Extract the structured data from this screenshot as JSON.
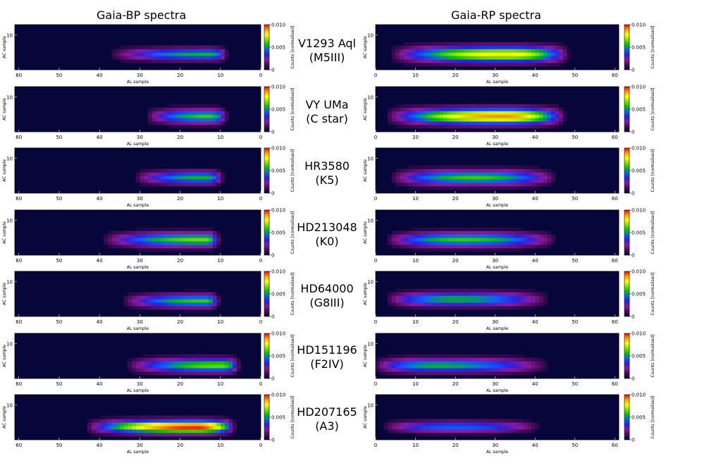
{
  "column_titles": {
    "left": "Gaia-BP spectra",
    "right": "Gaia-RP spectra"
  },
  "rows": [
    {
      "name": "V1293 Aql",
      "type": "(M5III)"
    },
    {
      "name": "VY UMa",
      "type": "(C star)"
    },
    {
      "name": "HR3580",
      "type": "(K5)"
    },
    {
      "name": "HD213048",
      "type": "(K0)"
    },
    {
      "name": "HD64000",
      "type": "(G8III)"
    },
    {
      "name": "HD151196",
      "type": "(F2IV)"
    },
    {
      "name": "HD207165",
      "type": "(A3)"
    }
  ],
  "colors": {
    "background": "#06063a",
    "colormap": [
      "#06063a",
      "#4a0a5a",
      "#8a1aa0",
      "#2a20e0",
      "#0a60ff",
      "#00c000",
      "#80e000",
      "#ffff00",
      "#ffa000",
      "#ff0000"
    ]
  },
  "chart_data": [
    {
      "type": "heatmap",
      "instrument": "BP",
      "xlabel": "AL sample",
      "ylabel": "AC sample",
      "x_reversed": true,
      "xlim": [
        0,
        61
      ],
      "xticks": [
        60,
        50,
        40,
        30,
        20,
        10,
        0
      ],
      "yticks": [
        10
      ],
      "colorbar": {
        "label": "Counts [normalised]",
        "ticks": [
          "0.010",
          "0.005",
          "0"
        ],
        "range": [
          0,
          0.01
        ]
      },
      "panels": [
        {
          "star": "V1293 Aql",
          "peak_al": 13,
          "peak": 0.0055,
          "x_start": 36,
          "x_end": 10,
          "ac_center": 4.5,
          "ac_width": 1.2
        },
        {
          "star": "VY UMa",
          "peak_al": 13,
          "peak": 0.006,
          "x_start": 27,
          "x_end": 10,
          "ac_center": 4.5,
          "ac_width": 1.4
        },
        {
          "star": "HR3580",
          "peak_al": 14,
          "peak": 0.0055,
          "x_start": 30,
          "x_end": 11,
          "ac_center": 4.5,
          "ac_width": 1.3
        },
        {
          "star": "HD213048",
          "peak_al": 14,
          "peak": 0.0065,
          "x_start": 38,
          "x_end": 12,
          "ac_center": 4.5,
          "ac_width": 1.4
        },
        {
          "star": "HD64000",
          "peak_al": 14,
          "peak": 0.006,
          "x_start": 33,
          "x_end": 12,
          "ac_center": 4.5,
          "ac_width": 1.3
        },
        {
          "star": "HD151196",
          "peak_al": 10,
          "peak": 0.0065,
          "x_start": 32,
          "x_end": 7,
          "ac_center": 3.8,
          "ac_width": 1.4
        },
        {
          "star": "HD207165",
          "peak_al": 16,
          "peak": 0.01,
          "x_start": 42,
          "x_end": 8,
          "ac_center": 3.8,
          "ac_width": 1.3
        }
      ]
    },
    {
      "type": "heatmap",
      "instrument": "RP",
      "xlabel": "AL sample",
      "ylabel": "AC sample",
      "x_reversed": false,
      "xlim": [
        0,
        61
      ],
      "xticks": [
        0,
        10,
        20,
        30,
        40,
        50,
        60
      ],
      "yticks": [
        10
      ],
      "colorbar": {
        "label": "Counts [normalised]",
        "ticks": [
          "0.010",
          "0.005",
          "0"
        ],
        "range": [
          0,
          0.01
        ]
      },
      "panels": [
        {
          "star": "V1293 Aql",
          "peak_al": 33,
          "peak": 0.008,
          "x_start": 5,
          "x_end": 47,
          "ac_center": 4.5,
          "ac_width": 1.6
        },
        {
          "star": "VY UMa",
          "peak_al": 32,
          "peak": 0.009,
          "x_start": 4,
          "x_end": 46,
          "ac_center": 4.5,
          "ac_width": 1.6
        },
        {
          "star": "HR3580",
          "peak_al": 25,
          "peak": 0.006,
          "x_start": 5,
          "x_end": 44,
          "ac_center": 4.5,
          "ac_width": 1.5
        },
        {
          "star": "HD213048",
          "peak_al": 22,
          "peak": 0.006,
          "x_start": 4,
          "x_end": 44,
          "ac_center": 4.5,
          "ac_width": 1.4
        },
        {
          "star": "HD64000",
          "peak_al": 20,
          "peak": 0.0055,
          "x_start": 4,
          "x_end": 42,
          "ac_center": 5.0,
          "ac_width": 1.4
        },
        {
          "star": "HD151196",
          "peak_al": 15,
          "peak": 0.0055,
          "x_start": 1,
          "x_end": 42,
          "ac_center": 3.8,
          "ac_width": 1.4
        },
        {
          "star": "HD207165",
          "peak_al": 20,
          "peak": 0.0045,
          "x_start": 3,
          "x_end": 40,
          "ac_center": 3.8,
          "ac_width": 1.1
        }
      ]
    }
  ]
}
